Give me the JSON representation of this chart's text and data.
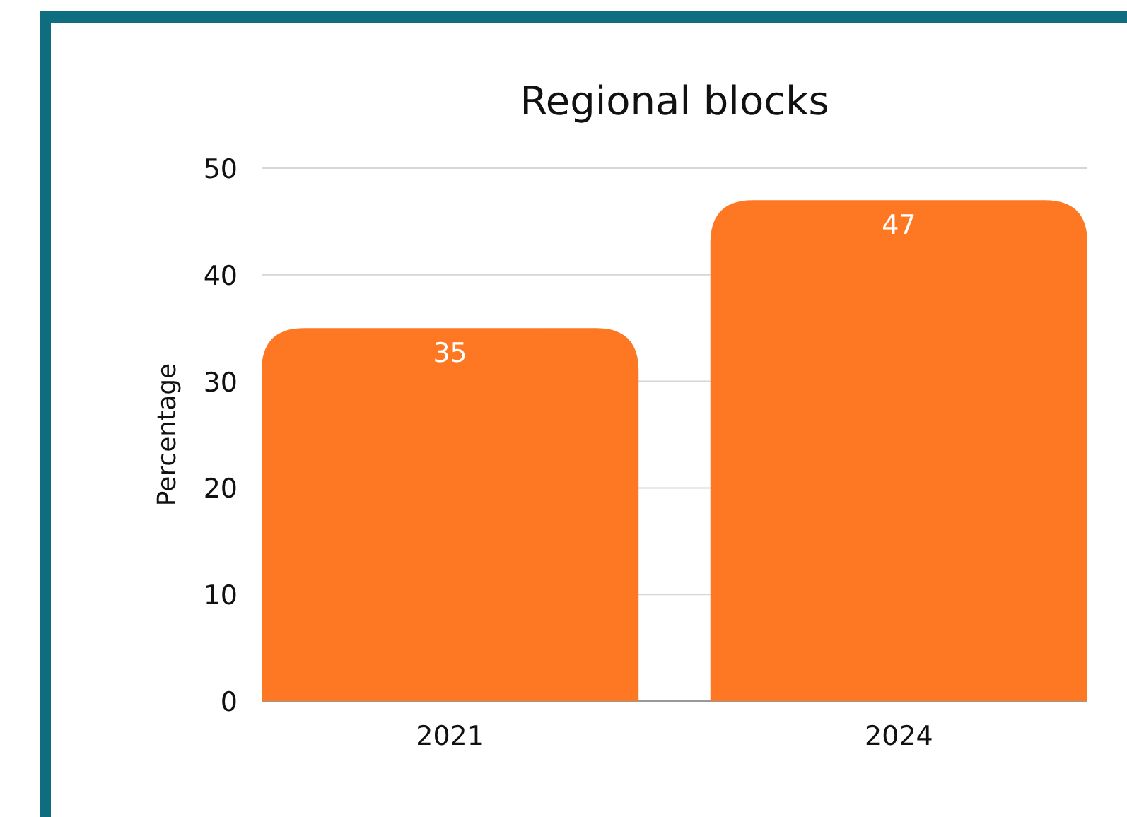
{
  "chart_data": {
    "type": "bar",
    "title": "Regional blocks",
    "ylabel": "Percentage",
    "categories": [
      "2021",
      "2024"
    ],
    "values": [
      35,
      47
    ],
    "color": "#fe7722",
    "ylim": [
      0,
      50
    ],
    "yticks": [
      0,
      10,
      20,
      30,
      40,
      50
    ],
    "grid": "y",
    "data_labels": true
  }
}
